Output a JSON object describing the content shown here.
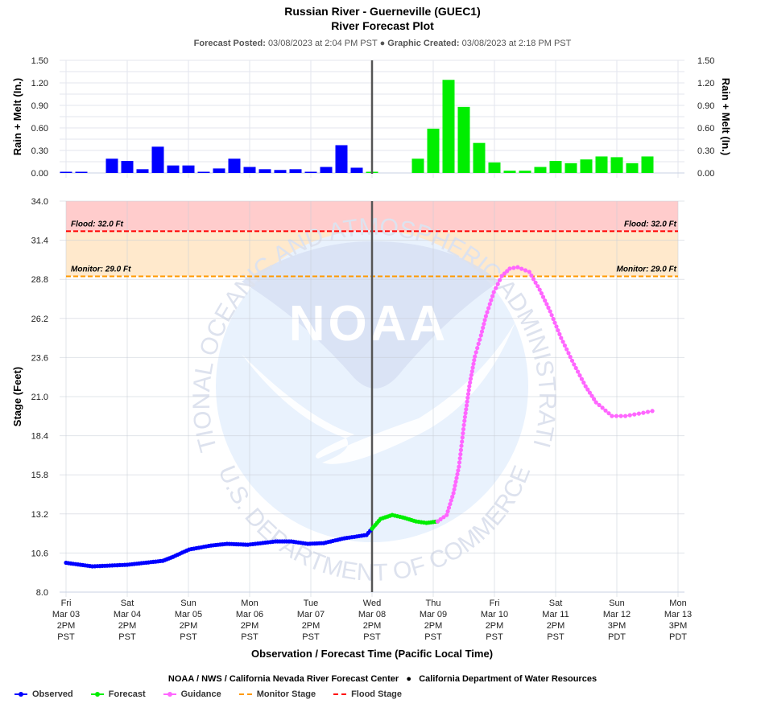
{
  "header": {
    "title": "Russian River - Guerneville (GUEC1)",
    "subtitle": "River Forecast Plot",
    "posted_label": "Forecast Posted:",
    "posted_value": "03/08/2023 at 2:04 PM PST",
    "separator": "●",
    "created_label": "Graphic Created:",
    "created_value": "03/08/2023 at 2:18 PM PST"
  },
  "credits": {
    "left": "NOAA / NWS / California Nevada River Forecast Center",
    "separator": "●",
    "right": "California Department of Water Resources"
  },
  "legend": [
    {
      "label": "Observed",
      "color": "#0000ff",
      "style": "line-marker"
    },
    {
      "label": "Forecast",
      "color": "#00ee00",
      "style": "line-marker"
    },
    {
      "label": "Guidance",
      "color": "#ff66ff",
      "style": "line-marker"
    },
    {
      "label": "Monitor Stage",
      "color": "#ff9900",
      "style": "dashed"
    },
    {
      "label": "Flood Stage",
      "color": "#ff0000",
      "style": "dashed"
    }
  ],
  "chart_data": [
    {
      "type": "bar",
      "title": "",
      "ylabel": "Rain + Melt (In.)",
      "ylabel_right": "Rain + Melt (In.)",
      "ylim": [
        0,
        1.5
      ],
      "yticks": [
        "0.00",
        "0.30",
        "0.60",
        "0.90",
        "1.20",
        "1.50"
      ],
      "x_unit": "days since Fri Mar 03 2PM PST, 6-hourly",
      "series": [
        {
          "name": "Observed",
          "color": "#0000ff",
          "x": [
            0,
            0.25,
            0.5,
            0.75,
            1.0,
            1.25,
            1.5,
            1.75,
            2.0,
            2.25,
            2.5,
            2.75,
            3.0,
            3.25,
            3.5,
            3.75,
            4.0,
            4.25,
            4.5,
            4.75
          ],
          "values": [
            0.01,
            0.01,
            0.0,
            0.19,
            0.16,
            0.05,
            0.35,
            0.1,
            0.1,
            0.01,
            0.06,
            0.19,
            0.08,
            0.05,
            0.04,
            0.05,
            0.01,
            0.08,
            0.37,
            0.07
          ]
        },
        {
          "name": "Forecast",
          "color": "#00ee00",
          "x": [
            5.0,
            5.25,
            5.5,
            5.75,
            6.0,
            6.25,
            6.5,
            6.75,
            7.0,
            7.25,
            7.5,
            7.75,
            8.0,
            8.25,
            8.5,
            8.75,
            9.0,
            9.25,
            9.5
          ],
          "values": [
            0.01,
            0.0,
            0.0,
            0.19,
            0.59,
            1.24,
            0.88,
            0.4,
            0.14,
            0.03,
            0.03,
            0.08,
            0.16,
            0.13,
            0.18,
            0.22,
            0.21,
            0.13,
            0.22
          ]
        }
      ]
    },
    {
      "type": "line",
      "ylabel": "Stage (Feet)",
      "xlabel": "Observation / Forecast Time (Pacific Local Time)",
      "ylim": [
        8.0,
        34.0
      ],
      "xlim_days": [
        0,
        10
      ],
      "yticks": [
        "8.0",
        "10.6",
        "13.2",
        "15.8",
        "18.4",
        "21.0",
        "23.6",
        "26.2",
        "28.8",
        "31.4",
        "34.0"
      ],
      "xticks": [
        {
          "day": "Fri",
          "date": "Mar 03",
          "time": "2PM",
          "tz": "PST"
        },
        {
          "day": "Sat",
          "date": "Mar 04",
          "time": "2PM",
          "tz": "PST"
        },
        {
          "day": "Sun",
          "date": "Mar 05",
          "time": "2PM",
          "tz": "PST"
        },
        {
          "day": "Mon",
          "date": "Mar 06",
          "time": "2PM",
          "tz": "PST"
        },
        {
          "day": "Tue",
          "date": "Mar 07",
          "time": "2PM",
          "tz": "PST"
        },
        {
          "day": "Wed",
          "date": "Mar 08",
          "time": "2PM",
          "tz": "PST"
        },
        {
          "day": "Thu",
          "date": "Mar 09",
          "time": "2PM",
          "tz": "PST"
        },
        {
          "day": "Fri",
          "date": "Mar 10",
          "time": "2PM",
          "tz": "PST"
        },
        {
          "day": "Sat",
          "date": "Mar 11",
          "time": "2PM",
          "tz": "PST"
        },
        {
          "day": "Sun",
          "date": "Mar 12",
          "time": "3PM",
          "tz": "PDT"
        },
        {
          "day": "Mon",
          "date": "Mar 13",
          "time": "3PM",
          "tz": "PDT"
        }
      ],
      "now_marker_day": 5.0,
      "thresholds": [
        {
          "name": "Flood",
          "label": "Flood: 32.0 Ft",
          "value": 32.0,
          "color": "#ff0000",
          "band_color": "#ffcccc"
        },
        {
          "name": "Monitor",
          "label": "Monitor: 29.0 Ft",
          "value": 29.0,
          "color": "#ff9900",
          "band_color": "#ffe9cc"
        }
      ],
      "series": [
        {
          "name": "Observed",
          "color": "#0000ff",
          "x": [
            0,
            0.43,
            1.0,
            1.58,
            1.75,
            2.01,
            2.37,
            2.63,
            2.97,
            3.42,
            3.68,
            3.95,
            4.21,
            4.55,
            4.91,
            5.0
          ],
          "y": [
            9.95,
            9.71,
            9.82,
            10.08,
            10.35,
            10.83,
            11.1,
            11.21,
            11.15,
            11.37,
            11.37,
            11.21,
            11.26,
            11.58,
            11.8,
            12.22
          ]
        },
        {
          "name": "Forecast",
          "color": "#00ee00",
          "x": [
            5.0,
            5.14,
            5.33,
            5.5,
            5.72,
            5.89,
            6.07
          ],
          "y": [
            12.22,
            12.87,
            13.13,
            12.97,
            12.7,
            12.6,
            12.7
          ]
        },
        {
          "name": "Guidance",
          "color": "#ff66ff",
          "x": [
            6.07,
            6.22,
            6.33,
            6.42,
            6.51,
            6.59,
            6.68,
            6.78,
            6.86,
            6.99,
            7.12,
            7.25,
            7.38,
            7.57,
            7.74,
            7.91,
            8.09,
            8.3,
            8.49,
            8.66,
            8.92,
            9.14,
            9.36,
            9.58
          ],
          "y": [
            12.7,
            13.13,
            14.58,
            16.34,
            19.39,
            21.69,
            23.67,
            25.07,
            26.35,
            27.95,
            29.02,
            29.51,
            29.61,
            29.29,
            28.11,
            26.67,
            24.9,
            23.14,
            21.69,
            20.62,
            19.71,
            19.71,
            19.87,
            20.04
          ]
        }
      ]
    }
  ],
  "watermark": {
    "logo_text": "NOAA",
    "ring_top": "NATIONAL OCEANIC AND ATMOSPHERIC ADMINISTRATION",
    "ring_bottom": "U.S. DEPARTMENT OF COMMERCE"
  }
}
